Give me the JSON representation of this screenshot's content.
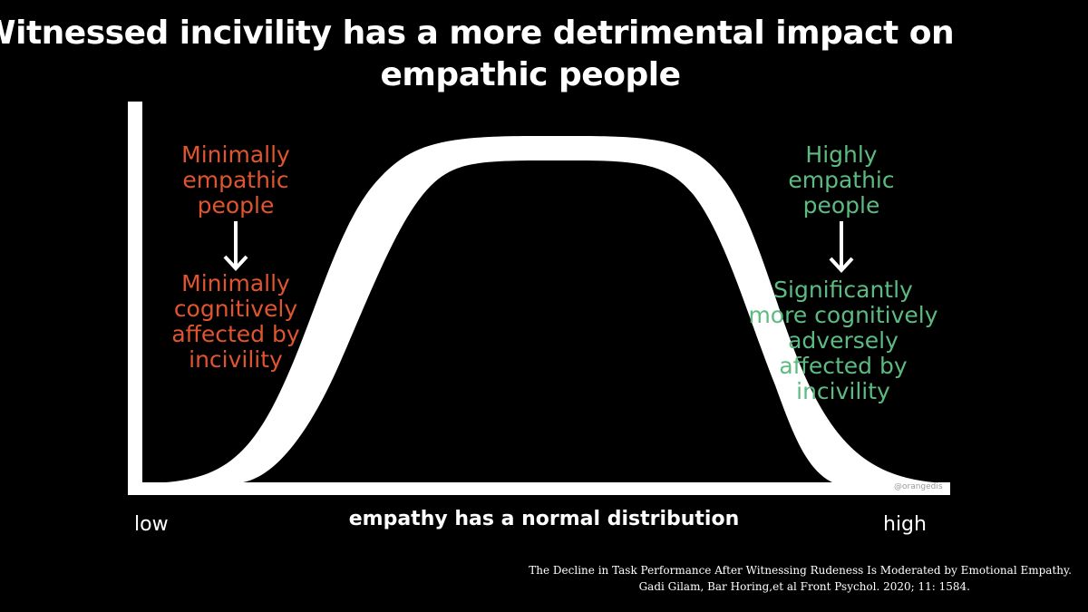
{
  "title": {
    "line1": "Witnessed incivility has a more detrimental impact on",
    "line2": "empathic people"
  },
  "left_group": {
    "top_lines": [
      "Minimally",
      "empathic",
      "people"
    ],
    "bottom_lines": [
      "Minimally",
      "cognitively",
      "affected by",
      "incivility"
    ],
    "color": "#e0552f"
  },
  "right_group": {
    "top_lines": [
      "Highly",
      "empathic",
      "people"
    ],
    "bottom_lines": [
      "Significantly",
      "more cognitively",
      "adversely",
      "affected by",
      "incivility"
    ],
    "color": "#5dbb82"
  },
  "axis": {
    "low": "low",
    "high": "high",
    "label": "empathy has a normal distribution"
  },
  "watermark": "@orangedis",
  "citation": {
    "line1": "The Decline in Task Performance After Witnessing Rudeness Is Moderated by Emotional Empathy.",
    "line2": "Gadi Gilam, Bar Horing,et al  Front Psychol. 2020; 11: 1584."
  },
  "curve": {
    "type": "normal-distribution",
    "color": "#ffffff"
  }
}
